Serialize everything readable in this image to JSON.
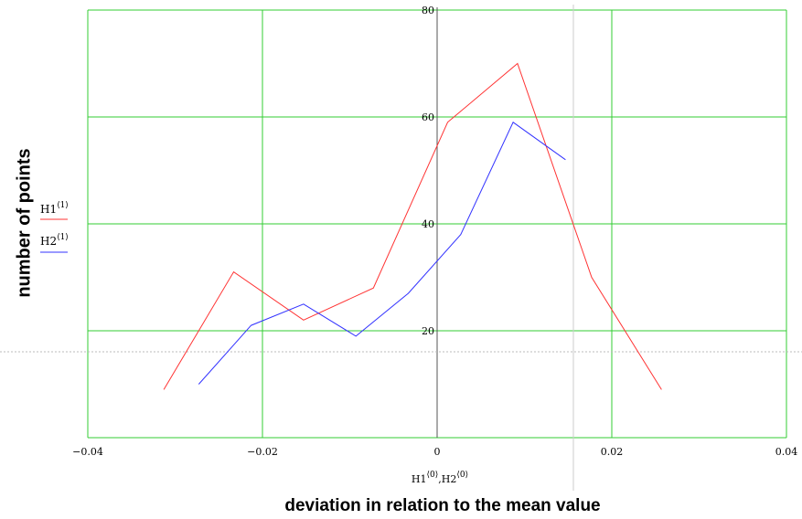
{
  "chart_data": {
    "type": "line",
    "xlabel": "deviation in relation to the mean value",
    "ylabel": "number of points",
    "x_var_label": {
      "h1": "H1",
      "sup1": "⟨0⟩",
      "sep": ",",
      "h2": "H2",
      "sup2": "⟨0⟩"
    },
    "xlim": [
      -0.04,
      0.04
    ],
    "ylim": [
      0,
      80
    ],
    "x_ticks": [
      -0.04,
      -0.02,
      0,
      0.02,
      0.04
    ],
    "x_tick_labels": [
      "−0.04",
      "−0.02",
      "0",
      "0.02",
      "0.04"
    ],
    "y_ticks": [
      20,
      40,
      60,
      80
    ],
    "y_tick_labels": [
      "20",
      "40",
      "60",
      "80"
    ],
    "grid": true,
    "grid_color": "#33cc33",
    "legend_position": "left",
    "series": [
      {
        "name": "H1",
        "sup": "⟨1⟩",
        "color": "#ff3333",
        "x": [
          -0.0313,
          -0.0233,
          -0.0153,
          -0.0073,
          0.0012,
          0.0092,
          0.0177,
          0.0257
        ],
        "y": [
          9,
          31,
          22,
          28,
          59,
          70,
          30,
          9
        ]
      },
      {
        "name": "H2",
        "sup": "⟨1⟩",
        "color": "#3333ff",
        "x": [
          -0.0273,
          -0.0213,
          -0.0153,
          -0.0093,
          -0.0033,
          0.0027,
          0.0087,
          0.0147
        ],
        "y": [
          10,
          21,
          25,
          19,
          27,
          38,
          59,
          52
        ]
      }
    ]
  }
}
